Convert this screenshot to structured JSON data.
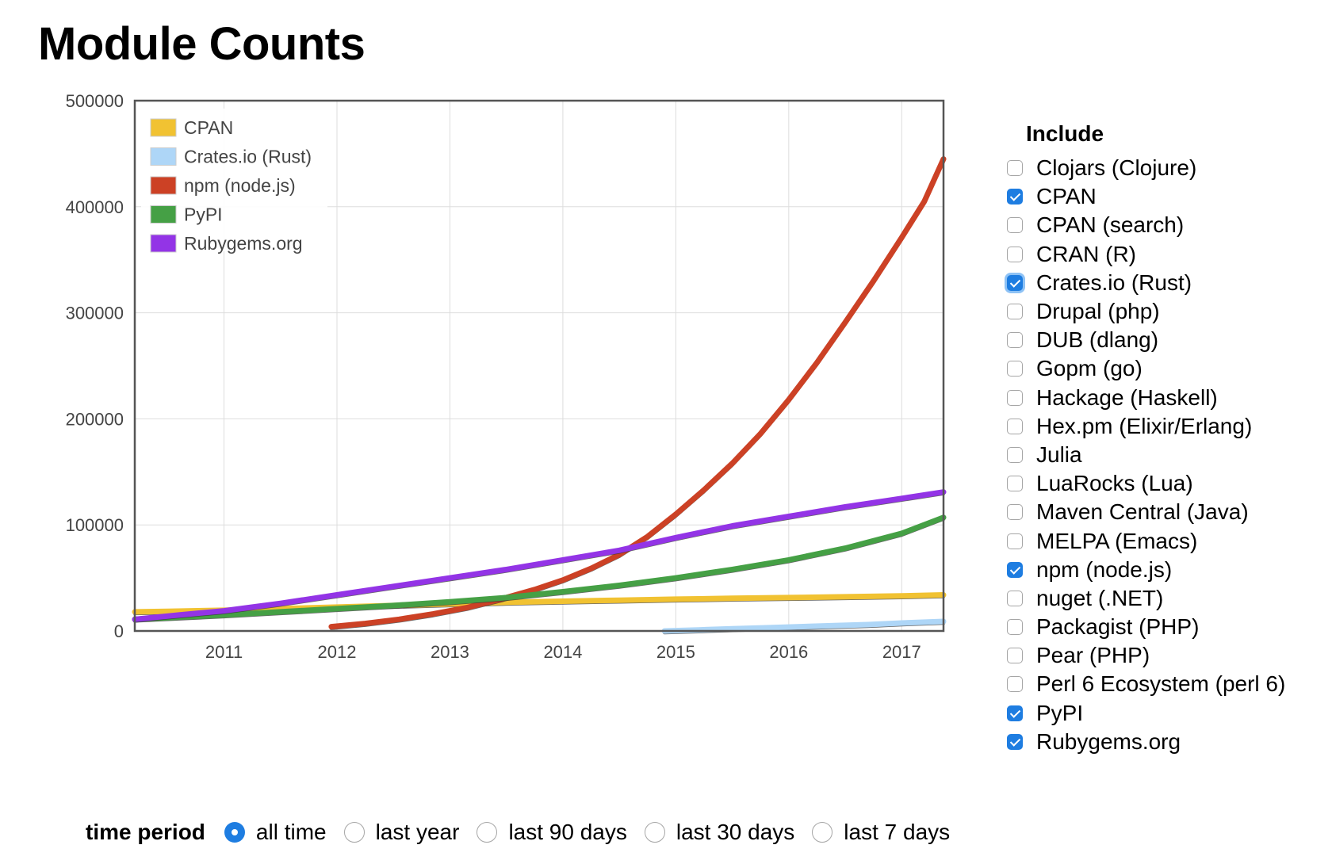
{
  "page": {
    "title": "Module Counts"
  },
  "include": {
    "heading": "Include",
    "items": [
      {
        "label": "Clojars (Clojure)",
        "checked": false
      },
      {
        "label": "CPAN",
        "checked": true
      },
      {
        "label": "CPAN (search)",
        "checked": false
      },
      {
        "label": "CRAN (R)",
        "checked": false
      },
      {
        "label": "Crates.io (Rust)",
        "checked": true,
        "focused": true
      },
      {
        "label": "Drupal (php)",
        "checked": false
      },
      {
        "label": "DUB (dlang)",
        "checked": false
      },
      {
        "label": "Gopm (go)",
        "checked": false
      },
      {
        "label": "Hackage (Haskell)",
        "checked": false
      },
      {
        "label": "Hex.pm (Elixir/Erlang)",
        "checked": false
      },
      {
        "label": "Julia",
        "checked": false
      },
      {
        "label": "LuaRocks (Lua)",
        "checked": false
      },
      {
        "label": "Maven Central (Java)",
        "checked": false
      },
      {
        "label": "MELPA (Emacs)",
        "checked": false
      },
      {
        "label": "npm (node.js)",
        "checked": true
      },
      {
        "label": "nuget (.NET)",
        "checked": false
      },
      {
        "label": "Packagist (PHP)",
        "checked": false
      },
      {
        "label": "Pear (PHP)",
        "checked": false
      },
      {
        "label": "Perl 6 Ecosystem (perl 6)",
        "checked": false
      },
      {
        "label": "PyPI",
        "checked": true
      },
      {
        "label": "Rubygems.org",
        "checked": true
      }
    ]
  },
  "time_period": {
    "label": "time period",
    "options": [
      {
        "label": "all time",
        "selected": true
      },
      {
        "label": "last year",
        "selected": false
      },
      {
        "label": "last 90 days",
        "selected": false
      },
      {
        "label": "last 30 days",
        "selected": false
      },
      {
        "label": "last 7 days",
        "selected": false
      }
    ]
  },
  "chart_data": {
    "type": "line",
    "title": "",
    "xlabel": "",
    "ylabel": "",
    "xlim": [
      2010.21,
      2017.37
    ],
    "ylim": [
      0,
      500000
    ],
    "x_ticks": [
      2011,
      2012,
      2013,
      2014,
      2015,
      2016,
      2017
    ],
    "y_ticks": [
      0,
      100000,
      200000,
      300000,
      400000,
      500000
    ],
    "grid": true,
    "legend_position": "top-left",
    "series": [
      {
        "name": "CPAN",
        "color": "#f1c232",
        "x": [
          2010.21,
          2010.5,
          2011,
          2011.5,
          2012,
          2012.5,
          2013,
          2013.5,
          2014,
          2014.5,
          2015,
          2015.5,
          2016,
          2016.5,
          2017,
          2017.37
        ],
        "y": [
          18000,
          18500,
          19500,
          21000,
          22500,
          24000,
          25500,
          27000,
          28000,
          29000,
          30000,
          30800,
          31500,
          32200,
          33000,
          34000
        ]
      },
      {
        "name": "Crates.io (Rust)",
        "color": "#aed6f7",
        "x": [
          2014.9,
          2015.2,
          2015.5,
          2015.8,
          2016.1,
          2016.4,
          2016.7,
          2017,
          2017.37
        ],
        "y": [
          0,
          1000,
          2000,
          3000,
          4000,
          5000,
          6000,
          7500,
          9000
        ]
      },
      {
        "name": "npm (node.js)",
        "color": "#cc4125",
        "x": [
          2011.95,
          2012.25,
          2012.55,
          2012.85,
          2013.15,
          2013.45,
          2013.75,
          2014,
          2014.25,
          2014.5,
          2014.75,
          2015,
          2015.25,
          2015.5,
          2015.75,
          2016,
          2016.25,
          2016.5,
          2016.75,
          2017,
          2017.2,
          2017.37
        ],
        "y": [
          4000,
          7000,
          11000,
          16000,
          22000,
          30000,
          39000,
          48000,
          59000,
          72000,
          89000,
          110000,
          133000,
          158000,
          186000,
          218000,
          253000,
          291000,
          330000,
          371000,
          405000,
          445000
        ]
      },
      {
        "name": "PyPI",
        "color": "#45a045",
        "x": [
          2010.21,
          2010.6,
          2011,
          2011.5,
          2012,
          2012.5,
          2013,
          2013.5,
          2014,
          2014.5,
          2015,
          2015.5,
          2016,
          2016.5,
          2017,
          2017.37
        ],
        "y": [
          11000,
          13000,
          15000,
          18000,
          21000,
          24000,
          27500,
          31500,
          37000,
          43000,
          50000,
          58000,
          67000,
          78000,
          92000,
          107000
        ]
      },
      {
        "name": "Rubygems.org",
        "color": "#9334e6",
        "x": [
          2010.21,
          2010.6,
          2011,
          2011.5,
          2012,
          2012.5,
          2013,
          2013.5,
          2014,
          2014.5,
          2015,
          2015.5,
          2016,
          2016.5,
          2017,
          2017.37
        ],
        "y": [
          11000,
          15000,
          19000,
          26000,
          34000,
          42000,
          50000,
          58000,
          67000,
          76000,
          88000,
          99000,
          108000,
          117000,
          125000,
          131000
        ]
      }
    ]
  }
}
